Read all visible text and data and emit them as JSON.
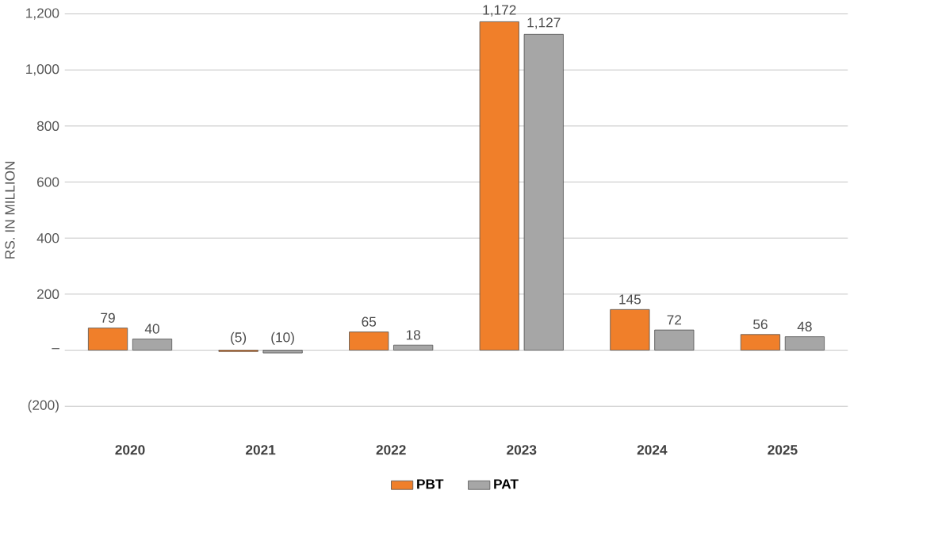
{
  "chart_data": {
    "type": "bar",
    "ylabel": "RS. IN MILLION",
    "categories": [
      "2020",
      "2021",
      "2022",
      "2023",
      "2024",
      "2025"
    ],
    "series": [
      {
        "name": "PBT",
        "color": "#f07f2a",
        "values": [
          79,
          -5,
          65,
          1172,
          145,
          56
        ],
        "value_labels": [
          "79",
          "(5)",
          "65",
          "1,172",
          "145",
          "56"
        ]
      },
      {
        "name": "PAT",
        "color": "#a6a6a6",
        "values": [
          40,
          -10,
          18,
          1127,
          72,
          48
        ],
        "value_labels": [
          "40",
          "(10)",
          "18",
          "1,127",
          "72",
          "48"
        ]
      }
    ],
    "ylim": [
      -200,
      1200
    ],
    "yticks": [
      {
        "value": -200,
        "label": "(200)"
      },
      {
        "value": 0,
        "label": "–"
      },
      200,
      400,
      600,
      800,
      {
        "value": 1000,
        "label": "1,000"
      },
      {
        "value": 1200,
        "label": "1,200"
      }
    ],
    "grid": "y",
    "legend": "bottom"
  }
}
